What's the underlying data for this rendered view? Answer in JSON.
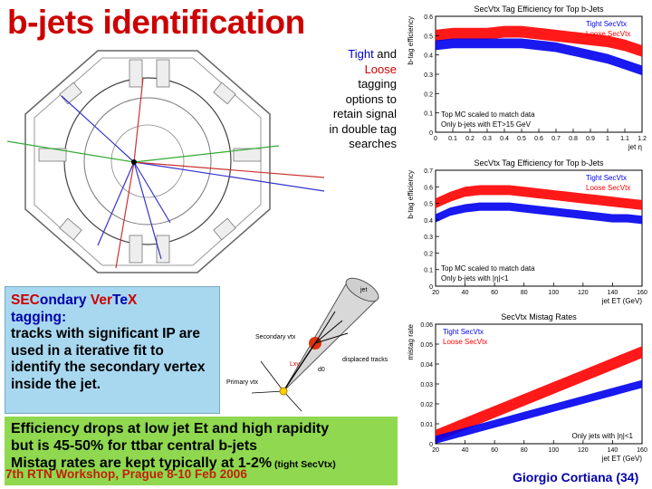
{
  "slide": {
    "title": "b-jets identification",
    "side_note": {
      "tight": "Tight",
      "and": " and",
      "loose": "Loose",
      "rest": "tagging options to retain signal in double tag searches"
    },
    "secvtx_box": {
      "line1_sec": "SEC",
      "line1_ondary": "ondary ",
      "line1_ver": "Ver",
      "line1_te": "Te",
      "line1_x": "X",
      "line2": "tagging:",
      "body": "tracks with significant IP are used in a iterative fit to identify the secondary vertex inside the jet."
    },
    "efficiency_box": {
      "line1": "Efficiency drops at low jet Et and high rapidity",
      "line2": "but is 45-50% for ttbar central b-jets",
      "line3": "Mistag rates are kept typically at 1-2%",
      "line3_small": " (tight SecVtx)"
    },
    "footer_left": "7th RTN Workshop, Prague 8-10 Feb 2006",
    "footer_right": "Giorgio Cortiana (34)"
  },
  "jet_sketch": {
    "jet": "jet",
    "secondary_vtx": "Secondary vtx",
    "displaced_tracks": "displaced tracks",
    "primary_vtx": "Primary vtx",
    "lxy": "Lxy",
    "d0": "d0",
    "colors": {
      "cone": "#d8d8d8",
      "vertex": "#dd3311",
      "primary": "#ffcc00"
    }
  },
  "chart_data": [
    {
      "type": "area",
      "title": "SecVtx Tag Efficiency for Top b-Jets",
      "xlabel": "jet η",
      "ylabel": "b-tag efficiency",
      "xlim": [
        0,
        1.2
      ],
      "ylim": [
        0,
        0.6
      ],
      "xticks": [
        "0",
        "0.1",
        "0.2",
        "0.3",
        "0.4",
        "0.5",
        "0.6",
        "0.7",
        "0.8",
        "0.9",
        "1",
        "1.1",
        "1.2"
      ],
      "yticks": [
        "0",
        "0.1",
        "0.2",
        "0.3",
        "0.4",
        "0.5",
        "0.6"
      ],
      "legend": [
        "Tight SecVtx",
        "Loose SecVtx"
      ],
      "legend_placement": "top-right",
      "annotations": [
        "Top MC scaled to match data",
        "Only b-jets with ET>15 GeV"
      ],
      "x": [
        0,
        0.1,
        0.2,
        0.3,
        0.4,
        0.5,
        0.6,
        0.7,
        0.8,
        0.9,
        1.0,
        1.1,
        1.2
      ],
      "series": [
        {
          "name": "Loose SecVtx",
          "color": "#ff0000",
          "values": [
            0.5,
            0.51,
            0.51,
            0.51,
            0.52,
            0.52,
            0.51,
            0.5,
            0.49,
            0.48,
            0.47,
            0.45,
            0.42
          ],
          "band": 0.03
        },
        {
          "name": "Tight SecVtx",
          "color": "#0000ee",
          "values": [
            0.45,
            0.46,
            0.46,
            0.46,
            0.46,
            0.46,
            0.45,
            0.44,
            0.42,
            0.4,
            0.38,
            0.35,
            0.32
          ],
          "band": 0.025
        }
      ]
    },
    {
      "type": "area",
      "title": "SecVtx Tag Efficiency for Top b-Jets",
      "xlabel": "jet ET (GeV)",
      "ylabel": "b-tag efficiency",
      "xlim": [
        20,
        160
      ],
      "ylim": [
        0,
        0.7
      ],
      "xticks": [
        "20",
        "40",
        "60",
        "80",
        "100",
        "120",
        "140",
        "160"
      ],
      "yticks": [
        "0",
        "0.1",
        "0.2",
        "0.3",
        "0.4",
        "0.5",
        "0.6",
        "0.7"
      ],
      "legend": [
        "Tight SecVtx",
        "Loose SecVtx"
      ],
      "legend_placement": "top-right",
      "annotations": [
        "Top MC scaled to match data",
        "Only b-jets with |η|<1"
      ],
      "x": [
        20,
        30,
        40,
        50,
        60,
        70,
        80,
        90,
        100,
        110,
        120,
        130,
        140,
        150,
        160
      ],
      "series": [
        {
          "name": "Loose SecVtx",
          "color": "#ff0000",
          "values": [
            0.5,
            0.54,
            0.57,
            0.58,
            0.58,
            0.58,
            0.57,
            0.56,
            0.55,
            0.54,
            0.53,
            0.52,
            0.51,
            0.5,
            0.49
          ],
          "band": 0.03
        },
        {
          "name": "Tight SecVtx",
          "color": "#0000ee",
          "values": [
            0.41,
            0.45,
            0.47,
            0.48,
            0.48,
            0.48,
            0.47,
            0.46,
            0.45,
            0.44,
            0.43,
            0.42,
            0.41,
            0.41,
            0.4
          ],
          "band": 0.025
        }
      ]
    },
    {
      "type": "area",
      "title": "SecVtx Mistag Rates",
      "xlabel": "jet ET (GeV)",
      "ylabel": "mistag rate",
      "xlim": [
        20,
        160
      ],
      "ylim": [
        0,
        0.06
      ],
      "xticks": [
        "20",
        "40",
        "60",
        "80",
        "100",
        "120",
        "140",
        "160"
      ],
      "yticks": [
        "0",
        "0.01",
        "0.02",
        "0.03",
        "0.04",
        "0.05",
        "0.06"
      ],
      "legend": [
        "Tight SecVtx",
        "Loose SecVtx"
      ],
      "legend_placement": "top-left",
      "annotations": [
        "Only jets with |η|<1"
      ],
      "x": [
        20,
        30,
        40,
        50,
        60,
        70,
        80,
        90,
        100,
        110,
        120,
        130,
        140,
        150,
        160
      ],
      "series": [
        {
          "name": "Loose SecVtx",
          "color": "#ff0000",
          "values": [
            0.004,
            0.007,
            0.01,
            0.013,
            0.016,
            0.019,
            0.022,
            0.025,
            0.028,
            0.031,
            0.034,
            0.037,
            0.04,
            0.043,
            0.046
          ],
          "band": 0.003
        },
        {
          "name": "Tight SecVtx",
          "color": "#0000ee",
          "values": [
            0.002,
            0.004,
            0.006,
            0.008,
            0.01,
            0.012,
            0.014,
            0.016,
            0.018,
            0.02,
            0.022,
            0.024,
            0.026,
            0.028,
            0.03
          ],
          "band": 0.002
        }
      ]
    }
  ]
}
